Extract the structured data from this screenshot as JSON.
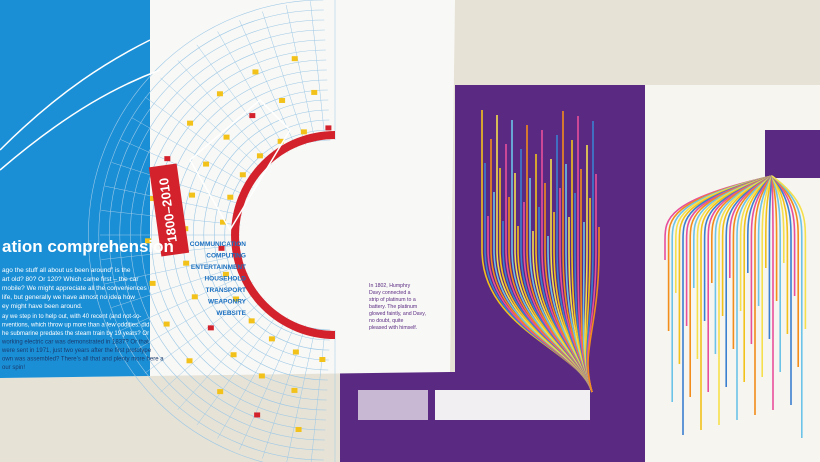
{
  "heading": "ation comprehension",
  "ribbon": "1800–2010",
  "categories": [
    "COMMUNICATION",
    "COMPUTING",
    "ENTERTAINMENT",
    "HOUSEHOLD",
    "TRANSPORT",
    "WEAPONRY",
    "WEBSITE"
  ],
  "body": [
    "ago the stuff all about us been around” is the",
    "art old? 80? Or 120? Which came first – the car",
    "mobile? We might appreciate all the conveniences",
    "life, but generally we have almost no idea how",
    "ey might have been around."
  ],
  "body2": [
    "ay we step in to help out, with 40 recent (and not-so-",
    "nventions, which throw up more than a few oddities: did",
    "he submarine predates the steam train by 19 years? Or",
    "working electric car was demonstrated in 1837? Or that",
    "were sent in 1971, just two years after the first prototype",
    "own was assembled? There’s all that and plenty more here a",
    "our spin!"
  ],
  "note": [
    "In 1802, Humphry",
    "Davy connected a",
    "strip of platinum to a",
    "battery. The platinum",
    "glowed faintly, and Davy,",
    "no doubt, quite",
    "pleased with himself."
  ]
}
